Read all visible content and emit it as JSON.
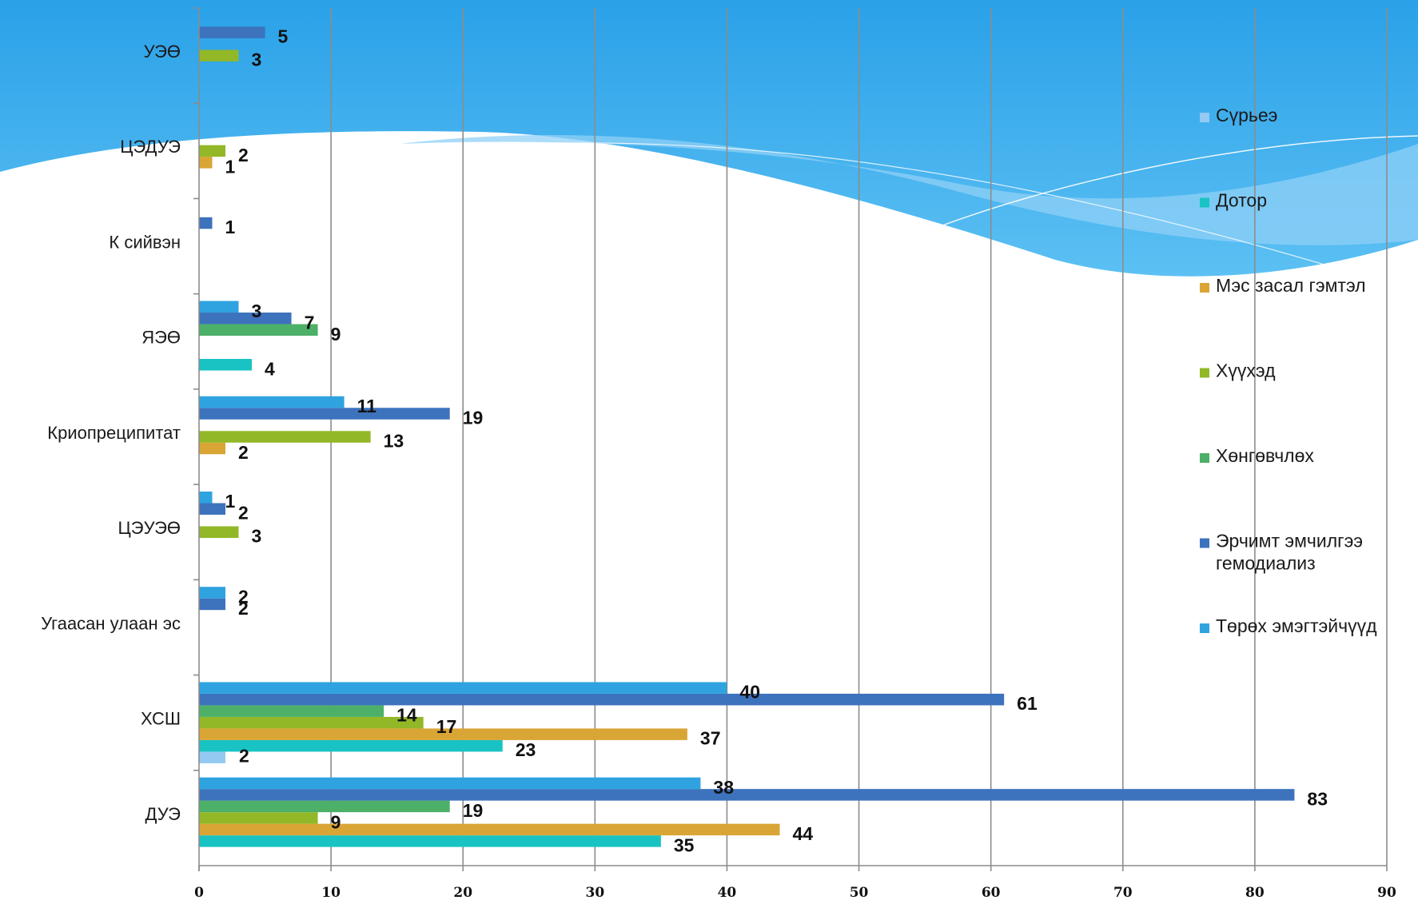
{
  "chart_data": {
    "type": "bar",
    "orientation": "horizontal",
    "title": "",
    "xlabel": "",
    "ylabel": "",
    "xlim": [
      0,
      90
    ],
    "xticks": [
      0,
      10,
      20,
      30,
      40,
      50,
      60,
      70,
      80,
      90
    ],
    "grid": true,
    "legend_position": "right",
    "categories": [
      "УЭӨ",
      "ЦЭДУЭ",
      "К сийвэн",
      "ЯЭӨ",
      "Криопреципитат",
      "ЦЭУЭӨ",
      "Угаасан улаан эс",
      "ХСШ",
      "ДУЭ"
    ],
    "series": [
      {
        "name": "Сүрьеэ",
        "color": "#93c9f2",
        "values": [
          null,
          null,
          null,
          null,
          null,
          null,
          null,
          2,
          null
        ]
      },
      {
        "name": "Дотор",
        "color": "#19c3c3",
        "values": [
          null,
          null,
          null,
          4,
          null,
          null,
          null,
          23,
          35
        ]
      },
      {
        "name": "Мэс засал гэмтэл",
        "color": "#d9a535",
        "values": [
          null,
          1,
          null,
          null,
          2,
          null,
          null,
          37,
          44
        ]
      },
      {
        "name": "Хүүхэд",
        "color": "#92b828",
        "values": [
          3,
          2,
          null,
          null,
          13,
          3,
          null,
          17,
          9
        ]
      },
      {
        "name": "Хөнгөвчлөх",
        "color": "#4cb068",
        "values": [
          null,
          null,
          null,
          9,
          null,
          null,
          null,
          14,
          19
        ]
      },
      {
        "name": "Эрчимт эмчилгээ гемодиализ",
        "name_lines": [
          "Эрчимт эмчилгээ",
          "гемодиализ"
        ],
        "color": "#3d72bd",
        "values": [
          5,
          null,
          1,
          7,
          19,
          2,
          2,
          61,
          83
        ]
      },
      {
        "name": "Төрөх эмэгтэйчүүд",
        "color": "#2ea3e0",
        "values": [
          null,
          null,
          null,
          3,
          11,
          1,
          2,
          40,
          38
        ]
      }
    ]
  }
}
